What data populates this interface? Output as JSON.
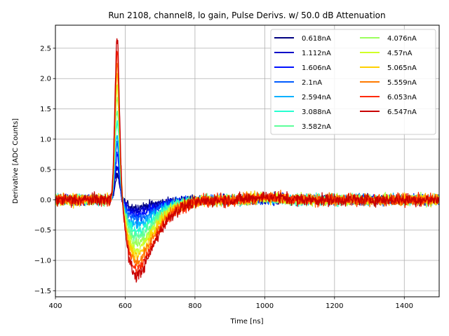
{
  "chart_data": {
    "type": "line",
    "title": "Run 2108, channel8, lo gain, Pulse Derivs. w/ 50.0 dB Attenuation",
    "xlabel": "Time [ns]",
    "ylabel": "Derivative [ADC Counts]",
    "xlim": [
      400,
      1500
    ],
    "ylim": [
      -1.6,
      2.88
    ],
    "xticks": [
      400,
      600,
      800,
      1000,
      1200,
      1400
    ],
    "xtick_labels": [
      "400",
      "600",
      "800",
      "1000",
      "1200",
      "1400"
    ],
    "yticks": [
      -1.5,
      -1.0,
      -0.5,
      0.0,
      0.5,
      1.0,
      1.5,
      2.0,
      2.5
    ],
    "ytick_labels": [
      "−1.5",
      "−1.0",
      "−0.5",
      "0.0",
      "0.5",
      "1.0",
      "1.5",
      "2.0",
      "2.5"
    ],
    "grid": true,
    "legend_position": "top-right",
    "legend_columns": 2,
    "series": [
      {
        "name": "0.618nA",
        "color": "#00007f",
        "peak": 0.38,
        "trough": -0.12
      },
      {
        "name": "1.112nA",
        "color": "#0000c8",
        "peak": 0.55,
        "trough": -0.18
      },
      {
        "name": "1.606nA",
        "color": "#0010ff",
        "peak": 0.72,
        "trough": -0.25
      },
      {
        "name": "2.1nA",
        "color": "#005cff",
        "peak": 0.9,
        "trough": -0.32
      },
      {
        "name": "2.594nA",
        "color": "#00b0ff",
        "peak": 1.08,
        "trough": -0.42
      },
      {
        "name": "3.088nA",
        "color": "#26ffd0",
        "peak": 1.3,
        "trough": -0.52
      },
      {
        "name": "3.582nA",
        "color": "#5cff9a",
        "peak": 1.5,
        "trough": -0.62
      },
      {
        "name": "4.076nA",
        "color": "#9aff5c",
        "peak": 1.7,
        "trough": -0.72
      },
      {
        "name": "4.57nA",
        "color": "#d0ff26",
        "peak": 1.88,
        "trough": -0.82
      },
      {
        "name": "5.065nA",
        "color": "#ffd000",
        "peak": 2.05,
        "trough": -0.92
      },
      {
        "name": "5.559nA",
        "color": "#ff7a00",
        "peak": 2.22,
        "trough": -1.02
      },
      {
        "name": "6.053nA",
        "color": "#ff2a00",
        "peak": 2.42,
        "trough": -1.15
      },
      {
        "name": "6.547nA",
        "color": "#c80000",
        "peak": 2.65,
        "trough": -1.25
      }
    ]
  }
}
